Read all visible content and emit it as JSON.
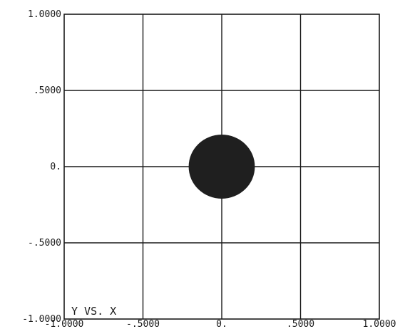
{
  "chart_data": {
    "type": "scatter",
    "title": "Y VS. X",
    "xlabel": "",
    "ylabel": "",
    "xlim": [
      -1.0,
      1.0
    ],
    "ylim": [
      -1.0,
      1.0
    ],
    "grid": true,
    "x_ticks": [
      {
        "value": -1.0,
        "label": "-1.0000"
      },
      {
        "value": -0.5,
        "label": "-.5000"
      },
      {
        "value": 0.0,
        "label": "0."
      },
      {
        "value": 0.5,
        "label": ".5000"
      },
      {
        "value": 1.0,
        "label": "1.0000"
      }
    ],
    "y_ticks": [
      {
        "value": -1.0,
        "label": "-1.0000"
      },
      {
        "value": -0.5,
        "label": "-.5000"
      },
      {
        "value": 0.0,
        "label": "0."
      },
      {
        "value": 0.5,
        "label": ".5000"
      },
      {
        "value": 1.0,
        "label": "1.0000"
      }
    ],
    "shapes": [
      {
        "type": "filled-disk",
        "center": [
          0.0,
          0.0
        ],
        "radius": 0.21,
        "color": "#1f1f1f"
      }
    ],
    "colors": {
      "axes": "#1a1a1a",
      "grid": "#1a1a1a",
      "marker": "#1f1f1f"
    }
  }
}
